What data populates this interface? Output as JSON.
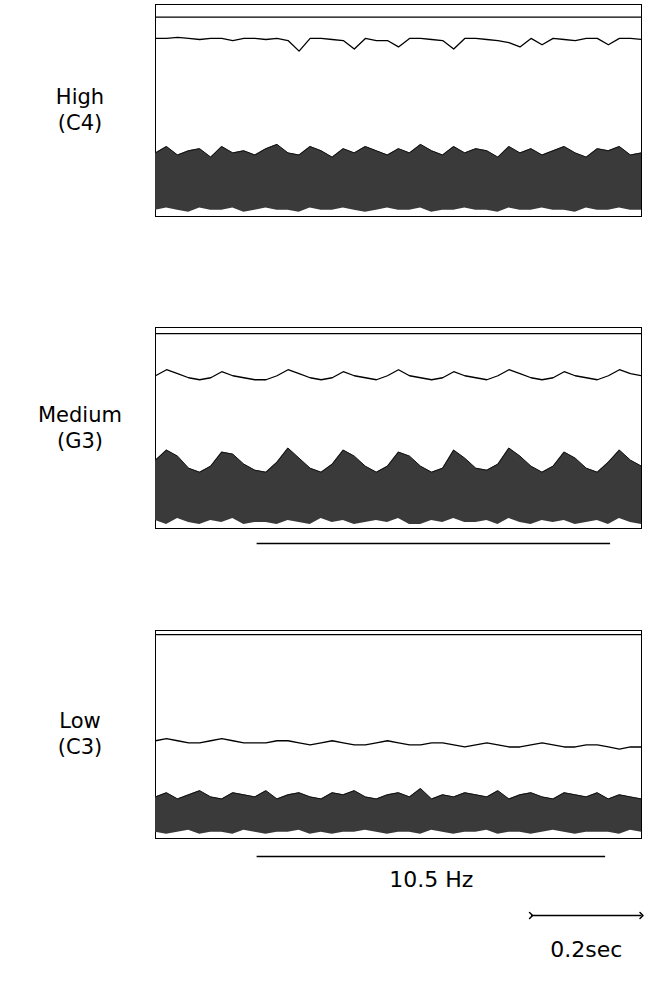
{
  "chart_data": [
    {
      "type": "line",
      "title": "High",
      "subtitle": "(C4)",
      "x": [
        0,
        0.02,
        0.04,
        0.06,
        0.08,
        0.1,
        0.12,
        0.14,
        0.16,
        0.18,
        0.2,
        0.22,
        0.24,
        0.26,
        0.28,
        0.3,
        0.32,
        0.34,
        0.36,
        0.38,
        0.4,
        0.42,
        0.44,
        0.46,
        0.48,
        0.5,
        0.52,
        0.54,
        0.56,
        0.58,
        0.6,
        0.62,
        0.64,
        0.66,
        0.68,
        0.7,
        0.72,
        0.74,
        0.76,
        0.78,
        0.8,
        0.82,
        0.84,
        0.86,
        0.88
      ],
      "xlim": [
        0,
        0.88
      ],
      "ylim": [
        0,
        100
      ],
      "tick_labels": false,
      "series": [
        {
          "type": "line",
          "color": "#000000",
          "values": [
            94,
            94,
            94,
            94,
            94,
            94,
            94,
            94,
            94,
            94,
            94,
            94,
            94,
            94,
            94,
            94,
            94,
            94,
            94,
            94,
            94,
            94,
            94,
            94,
            94,
            94,
            94,
            94,
            94,
            94,
            94,
            94,
            94,
            94,
            94,
            94,
            94,
            94,
            94,
            94,
            94,
            94,
            94,
            94,
            94
          ]
        },
        {
          "type": "line",
          "color": "#000000",
          "values": [
            84,
            84,
            84.5,
            84,
            83.5,
            84,
            84,
            83,
            84,
            84,
            83.5,
            84,
            83,
            78,
            84,
            84,
            83.5,
            83,
            79,
            84,
            83,
            83,
            80,
            84,
            84,
            83.5,
            83,
            79,
            84,
            84,
            83.5,
            83,
            82,
            80,
            84,
            81,
            84,
            83.5,
            83,
            84,
            84,
            81,
            84,
            84,
            83.5
          ]
        },
        {
          "type": "area",
          "color": "#3a3a3a",
          "lower": [
            3,
            4,
            3,
            2,
            4,
            3,
            3,
            4,
            2,
            3,
            4,
            3,
            3,
            2,
            4,
            3,
            3,
            4,
            3,
            2,
            3,
            4,
            3,
            3,
            4,
            2,
            3,
            3,
            4,
            3,
            3,
            2,
            4,
            3,
            3,
            4,
            3,
            3,
            2,
            4,
            3,
            3,
            4,
            3,
            3
          ],
          "upper": [
            30,
            33,
            29,
            31,
            32,
            28,
            33,
            30,
            31,
            29,
            32,
            34,
            30,
            29,
            33,
            31,
            28,
            32,
            30,
            33,
            31,
            29,
            32,
            30,
            34,
            31,
            29,
            33,
            30,
            32,
            31,
            28,
            33,
            30,
            32,
            29,
            31,
            33,
            30,
            28,
            32,
            31,
            33,
            29,
            30
          ]
        }
      ]
    },
    {
      "type": "line",
      "title": "Medium",
      "subtitle": "(G3)",
      "x": [
        0,
        0.02,
        0.04,
        0.06,
        0.08,
        0.1,
        0.12,
        0.14,
        0.16,
        0.18,
        0.2,
        0.22,
        0.24,
        0.26,
        0.28,
        0.3,
        0.32,
        0.34,
        0.36,
        0.38,
        0.4,
        0.42,
        0.44,
        0.46,
        0.48,
        0.5,
        0.52,
        0.54,
        0.56,
        0.58,
        0.6,
        0.62,
        0.64,
        0.66,
        0.68,
        0.7,
        0.72,
        0.74,
        0.76,
        0.78,
        0.8,
        0.82,
        0.84,
        0.86,
        0.88
      ],
      "xlim": [
        0,
        0.88
      ],
      "ylim": [
        0,
        100
      ],
      "tick_labels": false,
      "span": [
        0.184,
        0.824
      ],
      "series": [
        {
          "type": "line",
          "color": "#000000",
          "values": [
            97,
            97,
            97,
            97,
            97,
            97,
            97,
            97,
            97,
            97,
            97,
            97,
            97,
            97,
            97,
            97,
            97,
            97,
            97,
            97,
            97,
            97,
            97,
            97,
            97,
            97,
            97,
            97,
            97,
            97,
            97,
            97,
            97,
            97,
            97,
            97,
            97,
            97,
            97,
            97,
            97,
            97,
            97,
            97,
            97
          ]
        },
        {
          "type": "line",
          "color": "#000000",
          "values": [
            76,
            79,
            77,
            75,
            74,
            75,
            78,
            76,
            75,
            74,
            74,
            76,
            79,
            77,
            75,
            74,
            75,
            78,
            76,
            75,
            74,
            76,
            79,
            76,
            75,
            74,
            75,
            78,
            76,
            75,
            74,
            76,
            79,
            77,
            75,
            74,
            75,
            78,
            76,
            75,
            74,
            76,
            79,
            77,
            76
          ]
        },
        {
          "type": "area",
          "color": "#3a3a3a",
          "lower": [
            4,
            2,
            5,
            3,
            2,
            4,
            3,
            5,
            2,
            3,
            3,
            2,
            4,
            3,
            2,
            5,
            3,
            4,
            2,
            3,
            4,
            3,
            5,
            2,
            2,
            4,
            3,
            5,
            3,
            3,
            4,
            2,
            5,
            3,
            2,
            4,
            3,
            4,
            2,
            3,
            4,
            2,
            5,
            3,
            2
          ],
          "upper": [
            34,
            39,
            36,
            30,
            28,
            31,
            38,
            37,
            32,
            29,
            28,
            33,
            40,
            35,
            30,
            28,
            32,
            39,
            36,
            31,
            28,
            31,
            38,
            36,
            31,
            28,
            30,
            39,
            35,
            30,
            29,
            32,
            40,
            36,
            31,
            28,
            31,
            38,
            35,
            30,
            28,
            33,
            39,
            34,
            31
          ]
        }
      ]
    },
    {
      "type": "line",
      "title": "Low",
      "subtitle": "(C3)",
      "x": [
        0,
        0.02,
        0.04,
        0.06,
        0.08,
        0.1,
        0.12,
        0.14,
        0.16,
        0.18,
        0.2,
        0.22,
        0.24,
        0.26,
        0.28,
        0.3,
        0.32,
        0.34,
        0.36,
        0.38,
        0.4,
        0.42,
        0.44,
        0.46,
        0.48,
        0.5,
        0.52,
        0.54,
        0.56,
        0.58,
        0.6,
        0.62,
        0.64,
        0.66,
        0.68,
        0.7,
        0.72,
        0.74,
        0.76,
        0.78,
        0.8,
        0.82,
        0.84,
        0.86,
        0.88
      ],
      "xlim": [
        0,
        0.88
      ],
      "ylim": [
        0,
        100
      ],
      "tick_labels": false,
      "annotation": {
        "text": "10.5 Hz",
        "span": [
          0.184,
          0.815
        ]
      },
      "scale_bar": {
        "value": 0.2,
        "label": "0.2sec"
      },
      "series": [
        {
          "type": "line",
          "color": "#000000",
          "values": [
            98,
            98,
            98,
            98,
            98,
            98,
            98,
            98,
            98,
            98,
            98,
            98,
            98,
            98,
            98,
            98,
            98,
            98,
            98,
            98,
            98,
            98,
            98,
            98,
            98,
            98,
            98,
            98,
            98,
            98,
            98,
            98,
            98,
            98,
            98,
            98,
            98,
            98,
            98,
            98,
            98,
            98,
            98,
            98,
            98
          ]
        },
        {
          "type": "line",
          "color": "#000000",
          "values": [
            47,
            48,
            47,
            46,
            46,
            47,
            48,
            47,
            46,
            46,
            46,
            47,
            47,
            46,
            45,
            46,
            47,
            46,
            45,
            45,
            46,
            47,
            46,
            45,
            45,
            46,
            46,
            45,
            44,
            45,
            46,
            45,
            44,
            44,
            45,
            46,
            45,
            44,
            44,
            45,
            45,
            44,
            43,
            44,
            44
          ]
        },
        {
          "type": "area",
          "color": "#3a3a3a",
          "lower": [
            3,
            2,
            3,
            4,
            2,
            3,
            3,
            2,
            4,
            3,
            2,
            3,
            3,
            4,
            2,
            3,
            2,
            3,
            3,
            4,
            3,
            2,
            3,
            3,
            2,
            4,
            3,
            2,
            3,
            3,
            4,
            2,
            3,
            3,
            2,
            3,
            4,
            3,
            2,
            3,
            3,
            3,
            2,
            4,
            3
          ],
          "upper": [
            20,
            22,
            19,
            21,
            23,
            20,
            19,
            22,
            21,
            20,
            23,
            19,
            21,
            22,
            20,
            19,
            22,
            21,
            23,
            20,
            19,
            21,
            22,
            20,
            24,
            19,
            21,
            20,
            22,
            21,
            20,
            23,
            19,
            21,
            22,
            20,
            19,
            22,
            21,
            20,
            22,
            19,
            21,
            20,
            19
          ]
        }
      ]
    }
  ]
}
